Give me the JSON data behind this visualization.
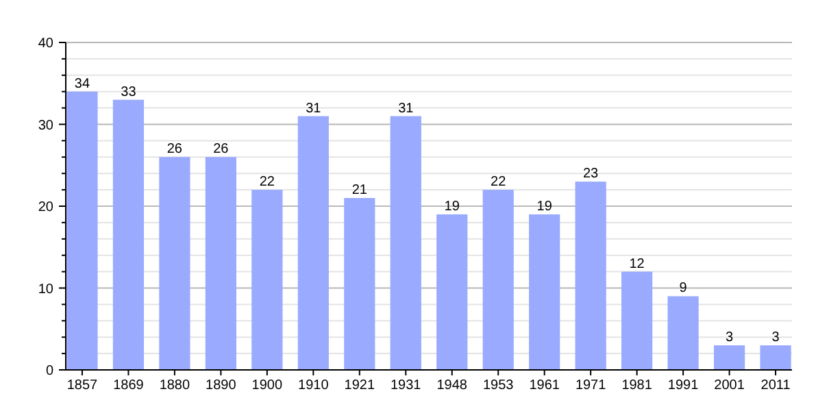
{
  "chart_data": {
    "type": "bar",
    "categories": [
      "1857",
      "1869",
      "1880",
      "1890",
      "1900",
      "1910",
      "1921",
      "1931",
      "1948",
      "1953",
      "1961",
      "1971",
      "1981",
      "1991",
      "2001",
      "2011"
    ],
    "values": [
      34,
      33,
      26,
      26,
      22,
      31,
      21,
      31,
      19,
      22,
      19,
      23,
      12,
      9,
      3,
      3
    ],
    "color": "#99aaff",
    "ylim": [
      0,
      40
    ],
    "yticks": [
      0,
      {
        "value": 2,
        "label": null
      },
      {
        "value": 4,
        "label": null
      },
      {
        "value": 6,
        "label": null
      },
      {
        "value": 8,
        "label": null
      },
      10,
      {
        "value": 12,
        "label": null
      },
      {
        "value": 14,
        "label": null
      },
      {
        "value": 16,
        "label": null
      },
      {
        "value": 18,
        "label": null
      },
      20,
      {
        "value": 22,
        "label": null
      },
      {
        "value": 24,
        "label": null
      },
      {
        "value": 26,
        "label": null
      },
      {
        "value": 28,
        "label": null
      },
      30,
      {
        "value": 32,
        "label": null
      },
      {
        "value": 34,
        "label": null
      },
      {
        "value": 36,
        "label": null
      },
      {
        "value": 38,
        "label": null
      },
      40
    ],
    "grid": "y",
    "data_labels": true
  }
}
